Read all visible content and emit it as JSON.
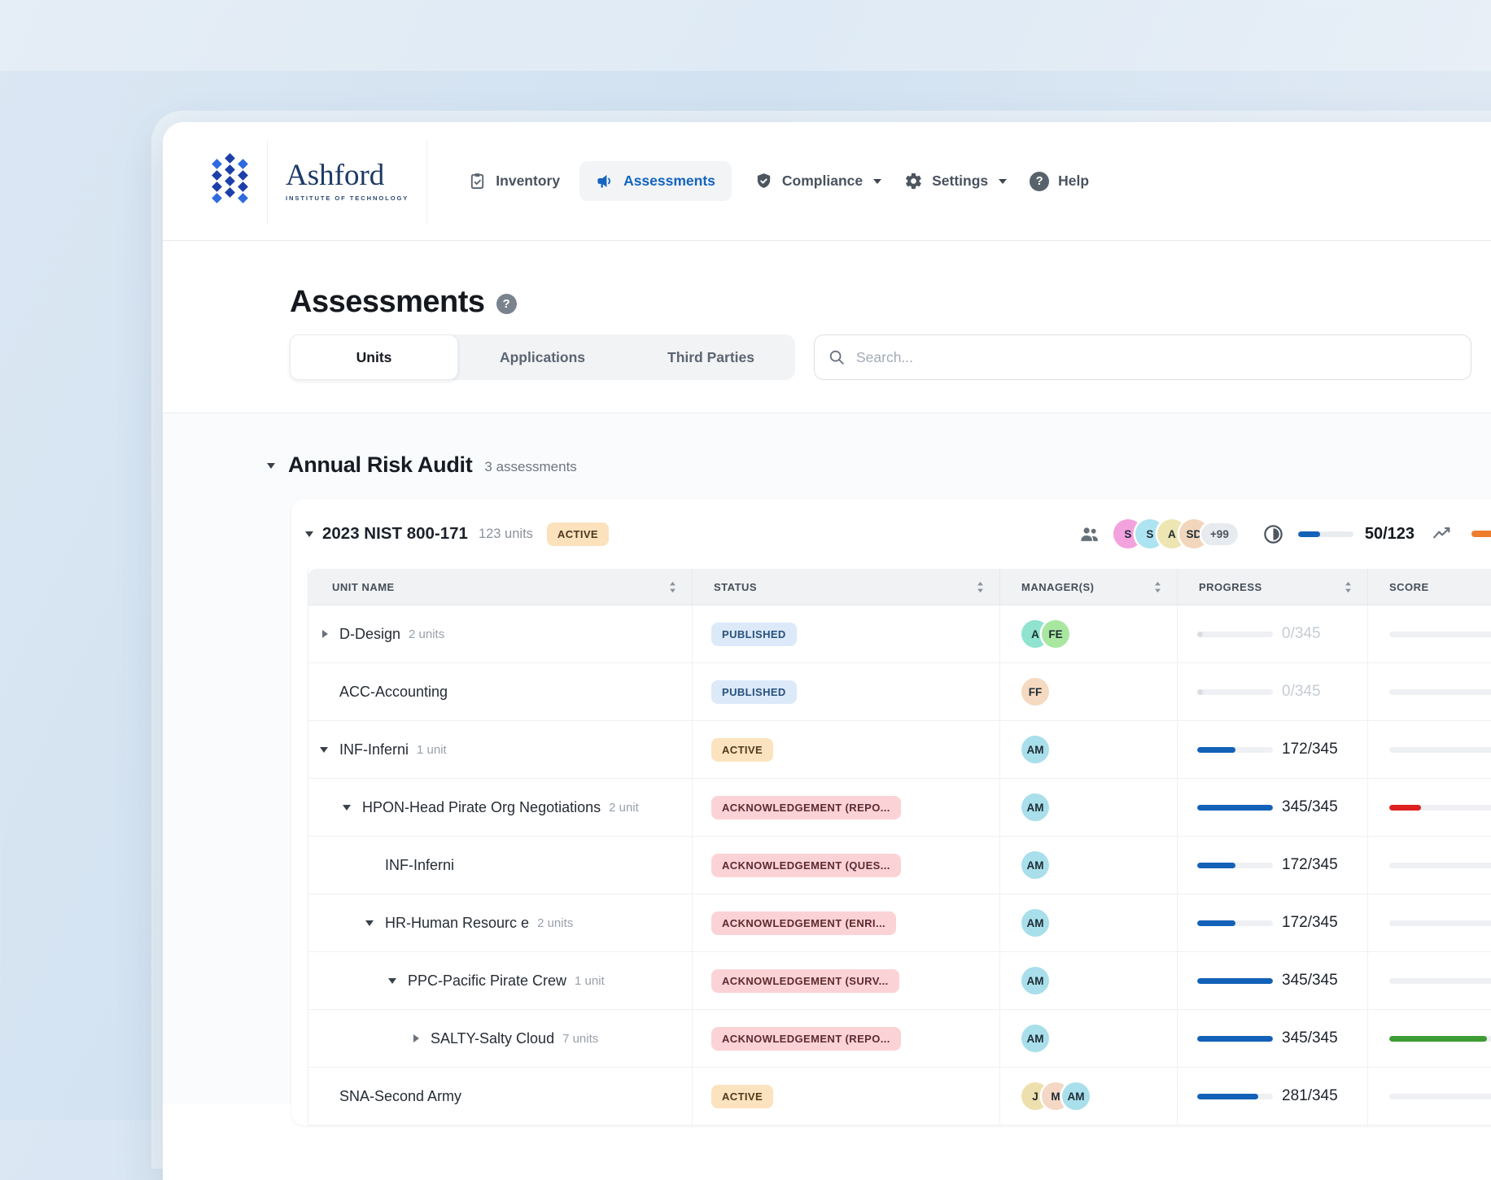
{
  "nav": {
    "brand": {
      "name": "Ashford",
      "subtitle": "INSTITUTE OF TECHNOLOGY"
    },
    "items": [
      {
        "label": "Inventory",
        "icon": "clipboard-icon"
      },
      {
        "label": "Assessments",
        "icon": "megaphone-icon",
        "active": true
      },
      {
        "label": "Compliance",
        "icon": "shield-check-icon",
        "dropdown": true
      },
      {
        "label": "Settings",
        "icon": "gear-icon",
        "dropdown": true
      },
      {
        "label": "Help",
        "icon": "help-circle-icon"
      }
    ]
  },
  "icons": {
    "question_mark": "?"
  },
  "page": {
    "title": "Assessments"
  },
  "tabs": [
    {
      "label": "Units",
      "active": true
    },
    {
      "label": "Applications",
      "active": false
    },
    {
      "label": "Third Parties",
      "active": false
    }
  ],
  "search": {
    "placeholder": "Search..."
  },
  "section": {
    "title": "Annual Risk Audit",
    "count": "3 assessments"
  },
  "assessment": {
    "title": "2023 NIST 800-171",
    "units": "123 units",
    "status": "ACTIVE",
    "avatars": [
      {
        "label": "S",
        "color": "#f2a2dd"
      },
      {
        "label": "S",
        "color": "#aee3f2"
      },
      {
        "label": "A",
        "color": "#ede5b2"
      },
      {
        "label": "SD",
        "color": "#f2d6bc"
      }
    ],
    "more": "+99",
    "progress": {
      "value": 50,
      "total": 123,
      "label": "50/123"
    }
  },
  "table": {
    "columns": [
      "UNIT NAME",
      "STATUS",
      "MANAGER(S)",
      "PROGRESS",
      "SCORE"
    ],
    "rows": [
      {
        "name": "D-Design",
        "units": "2 units",
        "caret": "collapsed",
        "indent": 0,
        "status": {
          "label": "PUBLISHED",
          "type": "published"
        },
        "managers": [
          {
            "label": "A",
            "color": "#8fe3cf"
          },
          {
            "label": "FE",
            "color": "#a9e7a1"
          }
        ],
        "progress": {
          "label": "0/345",
          "pct": 8,
          "muted": true
        },
        "score": null
      },
      {
        "name": "ACC-Accounting",
        "units": "",
        "caret": "none",
        "indent": 0,
        "status": {
          "label": "PUBLISHED",
          "type": "published"
        },
        "managers": [
          {
            "label": "FF",
            "color": "#f5d9c0"
          }
        ],
        "progress": {
          "label": "0/345",
          "pct": 8,
          "muted": true
        },
        "score": null
      },
      {
        "name": "INF-Inferni",
        "units": "1 unit",
        "caret": "expanded",
        "indent": 0,
        "status": {
          "label": "ACTIVE",
          "type": "active"
        },
        "managers": [
          {
            "label": "AM",
            "color": "#a9dfeb"
          }
        ],
        "progress": {
          "label": "172/345",
          "pct": 50,
          "muted": false
        },
        "score": null
      },
      {
        "name": "HPON-Head Pirate Org Negotiations",
        "units": "2 unit",
        "caret": "expanded",
        "indent": 1,
        "status": {
          "label": "ACKNOWLEDGEMENT (REPO...",
          "type": "ack"
        },
        "managers": [
          {
            "label": "AM",
            "color": "#a9dfeb"
          }
        ],
        "progress": {
          "label": "345/345",
          "pct": 100,
          "muted": false
        },
        "score": {
          "color": "#dd2020",
          "pct": 15
        }
      },
      {
        "name": "INF-Inferni",
        "units": "",
        "caret": "none",
        "indent": 2,
        "status": {
          "label": "ACKNOWLEDGEMENT (QUES...",
          "type": "ack"
        },
        "managers": [
          {
            "label": "AM",
            "color": "#a9dfeb"
          }
        ],
        "progress": {
          "label": "172/345",
          "pct": 50,
          "muted": false
        },
        "score": null
      },
      {
        "name": "HR-Human Resourc e",
        "units": "2 units",
        "caret": "expanded",
        "indent": 2,
        "status": {
          "label": "ACKNOWLEDGEMENT (ENRI...",
          "type": "ack"
        },
        "managers": [
          {
            "label": "AM",
            "color": "#a9dfeb"
          }
        ],
        "progress": {
          "label": "172/345",
          "pct": 50,
          "muted": false
        },
        "score": null
      },
      {
        "name": "PPC-Pacific Pirate Crew",
        "units": "1 unit",
        "caret": "expanded",
        "indent": 3,
        "status": {
          "label": "ACKNOWLEDGEMENT (SURV...",
          "type": "ack"
        },
        "managers": [
          {
            "label": "AM",
            "color": "#a9dfeb"
          }
        ],
        "progress": {
          "label": "345/345",
          "pct": 100,
          "muted": false
        },
        "score": null
      },
      {
        "name": "SALTY-Salty Cloud",
        "units": "7 units",
        "caret": "collapsed",
        "indent": 4,
        "status": {
          "label": "ACKNOWLEDGEMENT (REPO...",
          "type": "ack"
        },
        "managers": [
          {
            "label": "AM",
            "color": "#a9dfeb"
          }
        ],
        "progress": {
          "label": "345/345",
          "pct": 100,
          "muted": false
        },
        "score": {
          "color": "#3e9c35",
          "pct": 46
        }
      },
      {
        "name": "SNA-Second Army",
        "units": "",
        "caret": "none",
        "indent": 0,
        "status": {
          "label": "ACTIVE",
          "type": "active"
        },
        "managers": [
          {
            "label": "J",
            "color": "#ede0ae"
          },
          {
            "label": "M",
            "color": "#f4d7c4"
          },
          {
            "label": "AM",
            "color": "#a9dfeb"
          }
        ],
        "progress": {
          "label": "281/345",
          "pct": 81,
          "muted": false
        },
        "score": null
      }
    ]
  },
  "colors": {
    "accent_blue": "#1565c0",
    "progress_blue": "#1361b8",
    "score_red": "#dd2020",
    "score_green": "#3e9c35",
    "header_stub_orange": "#ef7d2e",
    "badge_published_bg": "#dce9f9",
    "badge_active_bg": "#fbe3bf",
    "badge_ack_bg": "#fbd3d6"
  }
}
